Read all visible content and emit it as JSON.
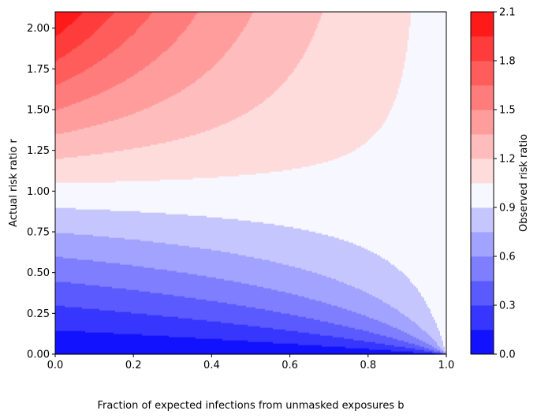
{
  "chart_data": {
    "type": "heatmap",
    "subtype": "filled-contour",
    "title": "",
    "xlabel": "Fraction of expected infections from unmasked exposures b",
    "ylabel": "Actual risk ratio r",
    "xlim": [
      0,
      1
    ],
    "ylim": [
      0,
      2.1
    ],
    "x_ticks": [
      "0.0",
      "0.2",
      "0.4",
      "0.6",
      "0.8",
      "1.0"
    ],
    "y_ticks": [
      "0.00",
      "0.25",
      "0.50",
      "0.75",
      "1.00",
      "1.25",
      "1.50",
      "1.75",
      "2.00"
    ],
    "z_formula": "observed = r / (b*r + 1 - b)",
    "colorbar": {
      "label": "Observed risk ratio",
      "levels": [
        0.0,
        0.15,
        0.3,
        0.45,
        0.6,
        0.75,
        0.9,
        1.05,
        1.2,
        1.35,
        1.5,
        1.65,
        1.8,
        1.95,
        2.1
      ],
      "tick_labels": [
        "0.0",
        "0.3",
        "0.6",
        "0.9",
        "1.2",
        "1.5",
        "1.8",
        "2.1"
      ],
      "colors": [
        "#1212ff",
        "#3636ff",
        "#5a5aff",
        "#7e7eff",
        "#a2a2ff",
        "#c6c6ff",
        "#f7f7ff",
        "#ffdcdc",
        "#ffbcbc",
        "#ff9c9c",
        "#ff7c7c",
        "#ff5c5c",
        "#ff3c3c",
        "#ff1a1a"
      ]
    },
    "grid": false,
    "legend": "none"
  }
}
